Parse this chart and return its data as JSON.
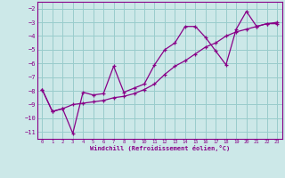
{
  "xlabel": "Windchill (Refroidissement éolien,°C)",
  "background_color": "#cce8e8",
  "grid_color": "#99cccc",
  "line_color": "#880088",
  "xlim": [
    -0.5,
    23.5
  ],
  "ylim": [
    -11.5,
    -1.5
  ],
  "xticks": [
    0,
    1,
    2,
    3,
    4,
    5,
    6,
    7,
    8,
    9,
    10,
    11,
    12,
    13,
    14,
    15,
    16,
    17,
    18,
    19,
    20,
    21,
    22,
    23
  ],
  "yticks": [
    -11,
    -10,
    -9,
    -8,
    -7,
    -6,
    -5,
    -4,
    -3,
    -2
  ],
  "series1_x": [
    0,
    1,
    2,
    3,
    4,
    5,
    6,
    7,
    8,
    9,
    10,
    11,
    12,
    13,
    14,
    15,
    16,
    17,
    18,
    19,
    20,
    21,
    22,
    23
  ],
  "series1_y": [
    -7.9,
    -9.5,
    -9.3,
    -11.1,
    -8.1,
    -8.3,
    -8.2,
    -6.2,
    -8.1,
    -7.8,
    -7.5,
    -6.1,
    -5.0,
    -4.5,
    -3.3,
    -3.3,
    -4.1,
    -5.1,
    -6.1,
    -3.5,
    -2.2,
    -3.3,
    -3.1,
    -3.1
  ],
  "series2_x": [
    0,
    1,
    2,
    3,
    4,
    5,
    6,
    7,
    8,
    9,
    10,
    11,
    12,
    13,
    14,
    15,
    16,
    17,
    18,
    19,
    20,
    21,
    22,
    23
  ],
  "series2_y": [
    -7.9,
    -9.5,
    -9.3,
    -9.0,
    -8.9,
    -8.8,
    -8.7,
    -8.5,
    -8.4,
    -8.2,
    -7.9,
    -7.5,
    -6.8,
    -6.2,
    -5.8,
    -5.3,
    -4.8,
    -4.5,
    -4.0,
    -3.7,
    -3.5,
    -3.3,
    -3.1,
    -3.0
  ]
}
